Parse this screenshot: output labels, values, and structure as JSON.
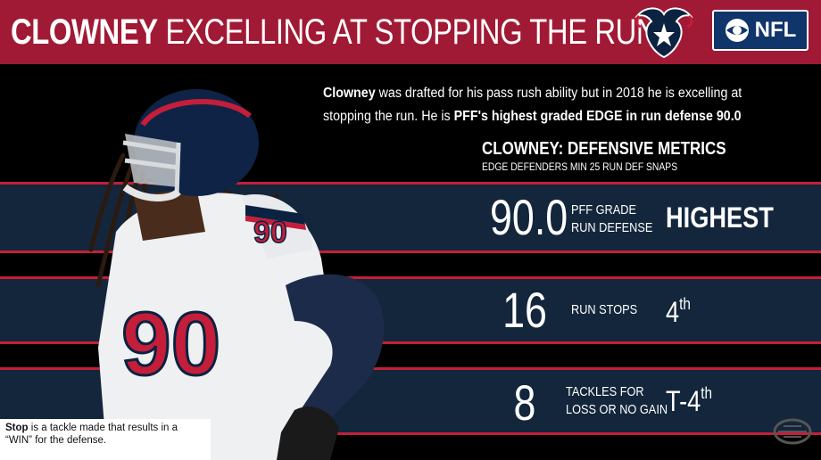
{
  "header": {
    "title_bold": "CLOWNEY",
    "title_rest": " EXCELLING AT STOPPING THE RUN",
    "team_logo_icon": "texans-bull-logo-icon",
    "network_logo_icon": "cbs-eye-icon",
    "network_label": "NFL"
  },
  "description": {
    "name": "Clowney",
    "text1": " was drafted for his pass rush ability but in 2018 he is excelling at stopping the run. He is ",
    "highlight": "PFF's highest graded EDGE in run defense 90.0"
  },
  "metrics": {
    "title": "CLOWNEY: DEFENSIVE METRICS",
    "subtitle": "EDGE DEFENDERS MIN 25 RUN DEF SNAPS",
    "rows": [
      {
        "value": "90.0",
        "label_line1": "PFF GRADE",
        "label_line2": "RUN DEFENSE",
        "rank": "HIGHEST",
        "rank_suffix": ""
      },
      {
        "value": "16",
        "label_line1": "RUN STOPS",
        "label_line2": "",
        "rank": "4",
        "rank_suffix": "th"
      },
      {
        "value": "8",
        "label_line1": "TACKLES FOR",
        "label_line2": "LOSS OR NO GAIN",
        "rank": "T-4",
        "rank_suffix": "th"
      }
    ]
  },
  "player": {
    "jersey_number": "90"
  },
  "footnote": {
    "term": "Stop",
    "text": " is a tackle made that results in a “WIN” for the defense."
  },
  "colors": {
    "header_red": "#a01a35",
    "band_navy": "#13263b",
    "stripe_red": "#c41e3a",
    "background": "#000000"
  }
}
